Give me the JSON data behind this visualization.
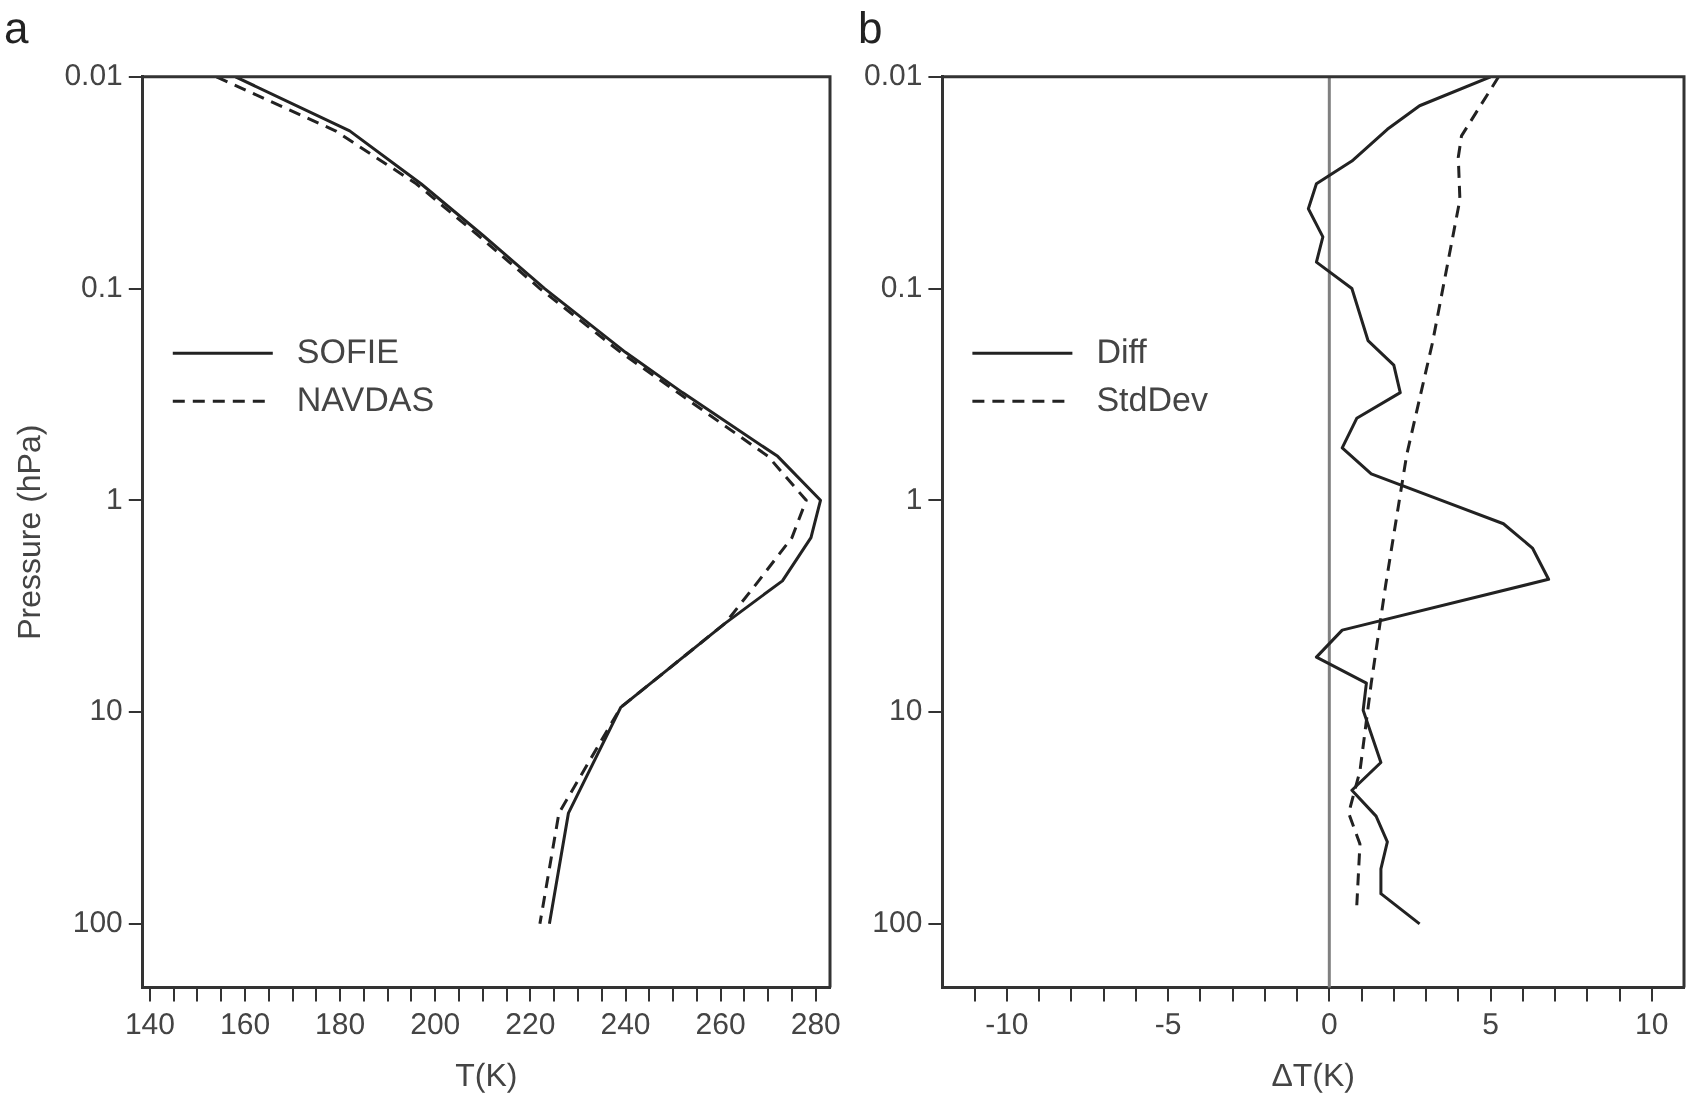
{
  "chart_data": [
    {
      "type": "line",
      "title": "a",
      "xlabel": "T(K)",
      "ylabel": "Pressure (hPa)",
      "log": "y",
      "grid": false,
      "legend": "left",
      "marker": "none",
      "xlim": [
        138.5,
        283
      ],
      "xticks": [
        140,
        {
          "value": 145,
          "label": null
        },
        {
          "value": 150,
          "label": null
        },
        {
          "value": 155,
          "label": null
        },
        160,
        {
          "value": 165,
          "label": null
        },
        {
          "value": 170,
          "label": null
        },
        {
          "value": 175,
          "label": null
        },
        180,
        {
          "value": 185,
          "label": null
        },
        {
          "value": 190,
          "label": null
        },
        {
          "value": 195,
          "label": null
        },
        200,
        {
          "value": 205,
          "label": null
        },
        {
          "value": 210,
          "label": null
        },
        {
          "value": 215,
          "label": null
        },
        220,
        {
          "value": 225,
          "label": null
        },
        {
          "value": 230,
          "label": null
        },
        {
          "value": 235,
          "label": null
        },
        240,
        {
          "value": 245,
          "label": null
        },
        {
          "value": 250,
          "label": null
        },
        {
          "value": 255,
          "label": null
        },
        260,
        {
          "value": 265,
          "label": null
        },
        {
          "value": 270,
          "label": null
        },
        {
          "value": 275,
          "label": null
        },
        280
      ],
      "ylim": [
        200,
        0.01
      ],
      "yticks": [
        0.01,
        0.1,
        1,
        10,
        100
      ],
      "series": [
        {
          "name": "SOFIE",
          "color": "#222222",
          "line_style": "solid",
          "x": [
            158,
            182,
            197,
            210,
            223,
            240,
            252,
            272,
            281,
            279,
            273,
            261,
            239,
            228,
            224
          ],
          "values": [
            0.01,
            0.018,
            0.032,
            0.056,
            0.1,
            0.2,
            0.31,
            0.62,
            1,
            1.5,
            2.4,
            3.8,
            9.5,
            30,
            100
          ]
        },
        {
          "name": "NAVDAS",
          "color": "#222222",
          "line_style": "dashed",
          "x": [
            154,
            179,
            196,
            209,
            222,
            239,
            251,
            270,
            278,
            275,
            268,
            261,
            239,
            226,
            222
          ],
          "values": [
            0.01,
            0.018,
            0.032,
            0.056,
            0.1,
            0.2,
            0.31,
            0.62,
            1,
            1.5,
            2.4,
            3.8,
            9.5,
            30,
            100
          ]
        }
      ]
    },
    {
      "type": "line",
      "title": "b",
      "xlabel": "ΔT(K)",
      "log": "y",
      "grid": false,
      "legend": "left",
      "marker": "none",
      "xlim": [
        -12,
        11
      ],
      "xticks": [
        {
          "value": -11,
          "label": null
        },
        -10,
        {
          "value": -9,
          "label": null
        },
        {
          "value": -8,
          "label": null
        },
        {
          "value": -7,
          "label": null
        },
        {
          "value": -6,
          "label": null
        },
        -5,
        {
          "value": -4,
          "label": null
        },
        {
          "value": -3,
          "label": null
        },
        {
          "value": -2,
          "label": null
        },
        {
          "value": -1,
          "label": null
        },
        0,
        {
          "value": 1,
          "label": null
        },
        {
          "value": 2,
          "label": null
        },
        {
          "value": 3,
          "label": null
        },
        {
          "value": 4,
          "label": null
        },
        5,
        {
          "value": 6,
          "label": null
        },
        {
          "value": 7,
          "label": null
        },
        {
          "value": 8,
          "label": null
        },
        {
          "value": 9,
          "label": null
        },
        10
      ],
      "ylim": [
        200,
        0.01
      ],
      "yticks": [
        0.01,
        0.1,
        1,
        10,
        100
      ],
      "ref_lines": [
        {
          "axis": "x",
          "value": 0,
          "color": "#808080"
        }
      ],
      "series": [
        {
          "name": "Diff",
          "color": "#222222",
          "line_style": "solid",
          "x": [
            5.0,
            2.8,
            1.8,
            0.7,
            -0.4,
            -0.65,
            -0.2,
            -0.4,
            0.7,
            1.2,
            2.0,
            2.2,
            0.85,
            0.4,
            1.3,
            5.4,
            6.3,
            6.8,
            0.4,
            -0.4,
            1.15,
            1.05,
            1.6,
            0.7,
            1.45,
            1.8,
            1.6,
            1.6,
            2.8
          ],
          "values": [
            0.01,
            0.0137,
            0.0177,
            0.025,
            0.032,
            0.042,
            0.057,
            0.075,
            0.1,
            0.176,
            0.23,
            0.31,
            0.41,
            0.565,
            0.75,
            1.29,
            1.68,
            2.36,
            4.1,
            5.5,
            7.3,
            9.8,
            17.3,
            23.4,
            31,
            41,
            55,
            72,
            100
          ]
        },
        {
          "name": "StdDev",
          "color": "#222222",
          "line_style": "dashed",
          "x": [
            5.25,
            4.1,
            4.0,
            4.05,
            3.2,
            2.4,
            2.05,
            1.75,
            1.3,
            0.95,
            0.6,
            0.95,
            0.85
          ],
          "values": [
            0.01,
            0.019,
            0.024,
            0.038,
            0.18,
            0.61,
            1.3,
            2.5,
            7.3,
            19,
            30,
            42,
            83
          ]
        }
      ]
    }
  ]
}
